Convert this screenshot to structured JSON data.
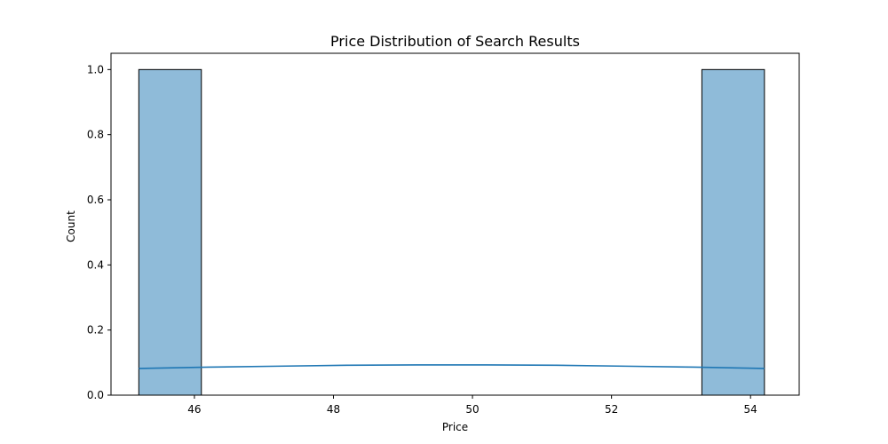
{
  "chart_data": {
    "type": "bar",
    "title": "Price Distribution of Search Results",
    "xlabel": "Price",
    "ylabel": "Count",
    "xlim": [
      44.8,
      54.7
    ],
    "ylim": [
      0,
      1.05
    ],
    "xticks": [
      46,
      48,
      50,
      52,
      54
    ],
    "xtick_labels": [
      "46",
      "48",
      "50",
      "52",
      "54"
    ],
    "yticks": [
      0.0,
      0.2,
      0.4,
      0.6,
      0.8,
      1.0
    ],
    "ytick_labels": [
      "0.0",
      "0.2",
      "0.4",
      "0.6",
      "0.8",
      "1.0"
    ],
    "bins": [
      {
        "x0": 45.2,
        "x1": 46.1,
        "count": 1
      },
      {
        "x0": 46.1,
        "x1": 47.0,
        "count": 0
      },
      {
        "x0": 47.0,
        "x1": 47.9,
        "count": 0
      },
      {
        "x0": 47.9,
        "x1": 48.8,
        "count": 0
      },
      {
        "x0": 48.8,
        "x1": 49.7,
        "count": 0
      },
      {
        "x0": 49.7,
        "x1": 50.6,
        "count": 0
      },
      {
        "x0": 50.6,
        "x1": 51.5,
        "count": 0
      },
      {
        "x0": 51.5,
        "x1": 52.4,
        "count": 0
      },
      {
        "x0": 52.4,
        "x1": 53.3,
        "count": 0
      },
      {
        "x0": 53.3,
        "x1": 54.2,
        "count": 1
      }
    ],
    "kde": {
      "x": [
        45.2,
        46.2,
        47.2,
        48.2,
        49.2,
        50.2,
        51.2,
        52.2,
        53.2,
        54.2
      ],
      "y": [
        0.082,
        0.086,
        0.089,
        0.092,
        0.093,
        0.093,
        0.092,
        0.089,
        0.086,
        0.082
      ]
    },
    "grid": false,
    "colors": {
      "bar_fill": "#8fbbd9",
      "bar_edge": "#000000",
      "kde_line": "#1f77b4"
    }
  }
}
